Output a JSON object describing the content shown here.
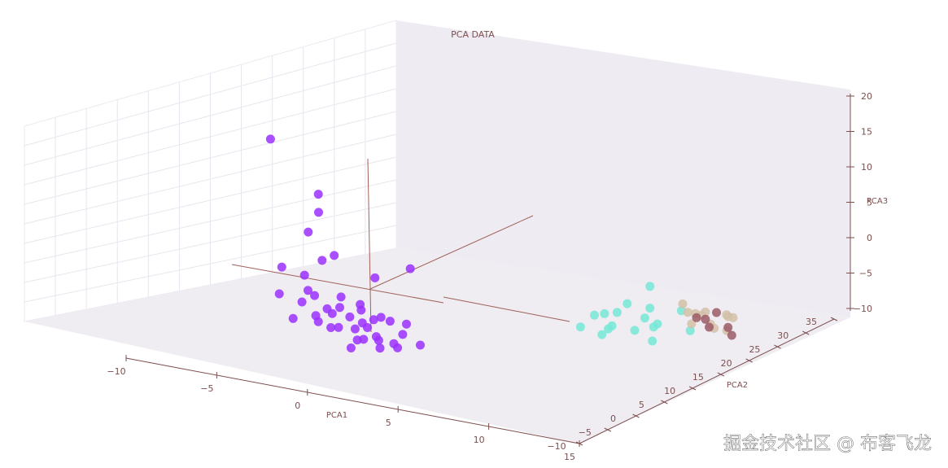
{
  "chart_data": {
    "type": "scatter",
    "projection": "3d",
    "title": "PCA DATA",
    "xlabel": "PCA1",
    "ylabel": "PCA2",
    "zlabel": "PCA3",
    "xlim": [
      -10,
      15
    ],
    "ylim": [
      -10,
      35
    ],
    "zlim": [
      -10,
      20
    ],
    "xticks": [
      -10,
      -5,
      0,
      5,
      10,
      15
    ],
    "yticks": [
      -10,
      -5,
      0,
      5,
      10,
      15,
      20,
      25,
      30,
      35
    ],
    "zticks": [
      -10,
      -5,
      0,
      5,
      10,
      15,
      20
    ],
    "grid": true,
    "colors": {
      "cluster_a": "#9b30ff",
      "cluster_b": "#76e8d7",
      "cluster_c": "#d2c0a8",
      "cluster_d": "#9c5a66",
      "axis": "#7d4e4e",
      "pane": "#eeecf2"
    },
    "series": [
      {
        "color": "#9b30ff",
        "points": [
          [
            -3.5,
            -8.5,
            19
          ],
          [
            -1.5,
            -6,
            11.5
          ],
          [
            -1.2,
            -7,
            9.5
          ],
          [
            -1.5,
            -8,
            7
          ],
          [
            -0.6,
            -6,
            3.5
          ],
          [
            -1,
            -7,
            3
          ],
          [
            -3,
            -8,
            1.5
          ],
          [
            -2,
            -7,
            0.5
          ],
          [
            -1.8,
            -7,
            -1.5
          ],
          [
            -3,
            -8.5,
            -2
          ],
          [
            -2,
            -7.5,
            -3
          ],
          [
            -0.5,
            -5,
            -2.5
          ],
          [
            -1.5,
            -6.5,
            -5
          ],
          [
            -2.5,
            -7.5,
            -5.5
          ],
          [
            -1.5,
            -6,
            -6
          ],
          [
            -0.5,
            -5.5,
            -6.5
          ],
          [
            0,
            -5,
            -5
          ],
          [
            0.3,
            -5,
            -6.5
          ],
          [
            1,
            -5,
            -6
          ],
          [
            1.5,
            -5,
            -7
          ],
          [
            2.5,
            -5,
            -7.5
          ],
          [
            2,
            -6,
            -8
          ],
          [
            0.5,
            -6.5,
            -8.5
          ],
          [
            2.5,
            -8,
            -6
          ],
          [
            3,
            -3.5,
            2.5
          ],
          [
            2,
            -7,
            2
          ],
          [
            3.5,
            -6,
            -4
          ],
          [
            0,
            -7,
            -3
          ],
          [
            -1,
            -6,
            -4
          ],
          [
            1,
            -6,
            -5
          ],
          [
            -2,
            -5,
            -3
          ],
          [
            3,
            -5,
            -6
          ],
          [
            0.5,
            -4.5,
            -4
          ],
          [
            1.5,
            -5.5,
            -4.5
          ],
          [
            -1,
            -5,
            -5
          ],
          [
            2,
            -4,
            -5
          ],
          [
            4,
            -5,
            -7
          ],
          [
            3,
            -6,
            -7.5
          ],
          [
            1,
            -7,
            -7
          ],
          [
            -0.5,
            -7,
            -6
          ],
          [
            1.5,
            -7.5,
            -6.5
          ],
          [
            0.3,
            -4,
            -3.5
          ],
          [
            2.2,
            -6.5,
            -3.5
          ]
        ]
      },
      {
        "color": "#76e8d7",
        "points": [
          [
            11,
            16,
            -3
          ],
          [
            10,
            13,
            -6
          ],
          [
            9,
            12,
            -6.5
          ],
          [
            10,
            12,
            -7.5
          ],
          [
            11,
            13,
            -8
          ],
          [
            12,
            14,
            -7
          ],
          [
            8.5,
            11,
            -8
          ],
          [
            11,
            16,
            -6
          ],
          [
            10,
            15,
            -5.5
          ],
          [
            11.5,
            15,
            -8
          ],
          [
            12,
            13,
            -9
          ],
          [
            9,
            14,
            -7
          ],
          [
            10,
            10,
            -8
          ],
          [
            13,
            17,
            -8.5
          ],
          [
            12.5,
            17,
            -6
          ],
          [
            11,
            15,
            -7
          ],
          [
            9.5,
            13,
            -8.5
          ]
        ]
      },
      {
        "color": "#d2c0a8",
        "points": [
          [
            12,
            19,
            -6
          ],
          [
            13,
            20,
            -7
          ],
          [
            12.5,
            21,
            -8
          ],
          [
            14,
            21,
            -7.5
          ],
          [
            13.5,
            20,
            -9
          ],
          [
            14.5,
            19,
            -8.5
          ],
          [
            13,
            18,
            -6.5
          ],
          [
            12,
            20,
            -7.5
          ],
          [
            14,
            22,
            -8
          ],
          [
            13,
            21,
            -9
          ],
          [
            12.5,
            19,
            -8.5
          ],
          [
            14.2,
            20,
            -6.8
          ]
        ]
      },
      {
        "color": "#9c5a66",
        "points": [
          [
            13,
            20,
            -8
          ],
          [
            14,
            21,
            -9
          ],
          [
            13.5,
            19,
            -8.5
          ],
          [
            12.5,
            20,
            -8
          ],
          [
            14.5,
            20,
            -9.5
          ],
          [
            13.2,
            21.5,
            -7.5
          ]
        ]
      }
    ]
  },
  "watermark": "掘金技术社区 @ 布客飞龙"
}
